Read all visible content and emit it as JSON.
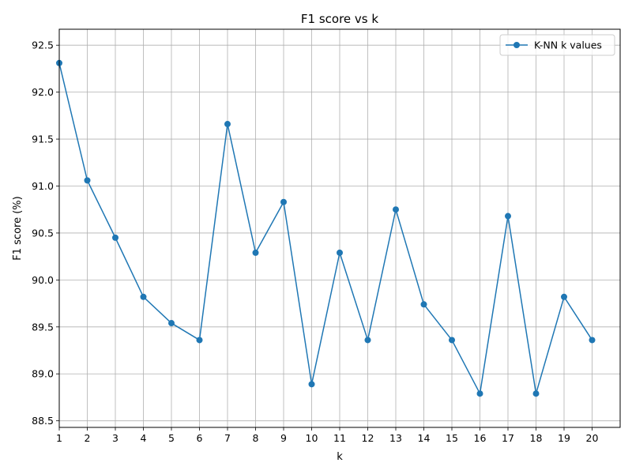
{
  "chart_data": {
    "type": "line",
    "title": "F1 score vs k",
    "xlabel": "k",
    "ylabel": "F1 score (%)",
    "grid": true,
    "legend_position": "top-right",
    "xlim": [
      1,
      21
    ],
    "ylim": [
      88.43,
      92.67
    ],
    "x_ticks": [
      1,
      2,
      3,
      4,
      5,
      6,
      7,
      8,
      9,
      10,
      11,
      12,
      13,
      14,
      15,
      16,
      17,
      18,
      19,
      20
    ],
    "y_ticks": [
      88.5,
      89.0,
      89.5,
      90.0,
      90.5,
      91.0,
      91.5,
      92.0,
      92.5
    ],
    "y_tick_labels": [
      "88.5",
      "89.0",
      "89.5",
      "90.0",
      "90.5",
      "91.0",
      "91.5",
      "92.0",
      "92.5"
    ],
    "series": [
      {
        "name": "K-NN k values",
        "color": "#1f77b4",
        "x": [
          1,
          2,
          3,
          4,
          5,
          6,
          7,
          8,
          9,
          10,
          11,
          12,
          13,
          14,
          15,
          16,
          17,
          18,
          19,
          20
        ],
        "values": [
          92.31,
          91.06,
          90.45,
          89.82,
          89.54,
          89.36,
          91.66,
          90.29,
          90.83,
          88.89,
          90.29,
          89.36,
          90.75,
          89.74,
          89.36,
          88.79,
          90.68,
          88.79,
          89.82,
          89.36
        ]
      }
    ]
  }
}
